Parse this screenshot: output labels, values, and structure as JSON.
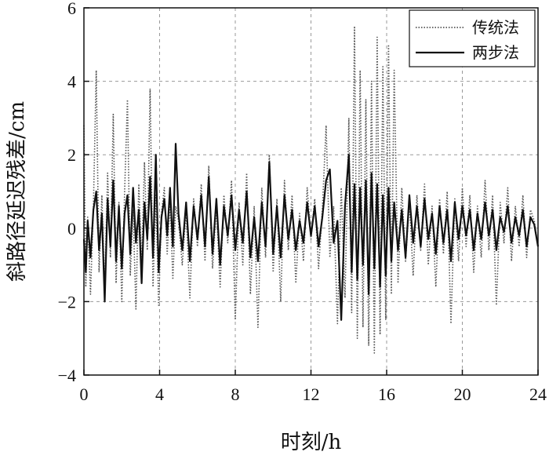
{
  "chart_data": {
    "type": "line",
    "xlabel": "时刻/h",
    "ylabel": "斜路径延迟残差/cm",
    "xlim": [
      0,
      24
    ],
    "ylim": [
      -4,
      6
    ],
    "xticks": [
      0,
      4,
      8,
      12,
      16,
      20,
      24
    ],
    "yticks": [
      -4,
      -2,
      0,
      2,
      4,
      6
    ],
    "grid": true,
    "legend_position": "top-right",
    "series": [
      {
        "name": "传统法",
        "style": "dotted",
        "color": "#555555",
        "x": [
          0.0,
          0.1,
          0.2,
          0.35,
          0.5,
          0.65,
          0.8,
          0.95,
          1.1,
          1.25,
          1.4,
          1.55,
          1.7,
          1.85,
          2.0,
          2.15,
          2.3,
          2.45,
          2.6,
          2.75,
          2.9,
          3.05,
          3.2,
          3.35,
          3.5,
          3.65,
          3.8,
          3.95,
          4.1,
          4.25,
          4.4,
          4.55,
          4.7,
          4.85,
          5.0,
          5.2,
          5.4,
          5.6,
          5.8,
          6.0,
          6.2,
          6.4,
          6.6,
          6.8,
          7.0,
          7.2,
          7.4,
          7.6,
          7.8,
          8.0,
          8.2,
          8.4,
          8.6,
          8.8,
          9.0,
          9.2,
          9.4,
          9.6,
          9.8,
          10.0,
          10.2,
          10.4,
          10.6,
          10.8,
          11.0,
          11.2,
          11.4,
          11.6,
          11.8,
          12.0,
          12.2,
          12.4,
          12.6,
          12.8,
          13.0,
          13.2,
          13.4,
          13.6,
          13.8,
          14.0,
          14.15,
          14.3,
          14.45,
          14.6,
          14.75,
          14.9,
          15.05,
          15.2,
          15.35,
          15.5,
          15.65,
          15.8,
          15.95,
          16.1,
          16.25,
          16.4,
          16.6,
          16.8,
          17.0,
          17.2,
          17.4,
          17.6,
          17.8,
          18.0,
          18.2,
          18.4,
          18.6,
          18.8,
          19.0,
          19.2,
          19.4,
          19.6,
          19.8,
          20.0,
          20.2,
          20.4,
          20.6,
          20.8,
          21.0,
          21.2,
          21.4,
          21.6,
          21.8,
          22.0,
          22.2,
          22.4,
          22.6,
          22.8,
          23.0,
          23.2,
          23.4,
          23.6,
          23.8,
          24.0
        ],
        "y": [
          2.8,
          -1.6,
          0.3,
          -1.8,
          0.6,
          4.3,
          -1.2,
          0.9,
          -1.7,
          1.5,
          -0.8,
          3.1,
          -1.5,
          0.7,
          -2.0,
          1.0,
          3.5,
          -1.3,
          0.5,
          -2.2,
          1.2,
          -1.0,
          1.8,
          -0.6,
          3.8,
          -1.6,
          0.9,
          -2.1,
          0.4,
          1.1,
          -0.7,
          0.8,
          -1.4,
          0.6,
          0.2,
          -1.0,
          0.5,
          -1.9,
          0.8,
          -0.5,
          1.2,
          -0.9,
          1.7,
          -1.1,
          0.6,
          -1.6,
          0.9,
          -0.4,
          1.3,
          -2.5,
          0.7,
          -1.0,
          1.5,
          -1.8,
          0.6,
          -2.7,
          1.1,
          -0.8,
          2.0,
          -1.2,
          0.8,
          -2.0,
          1.3,
          -0.6,
          0.9,
          -1.5,
          0.4,
          -0.9,
          1.1,
          -0.3,
          0.8,
          -1.1,
          0.5,
          2.8,
          -0.8,
          0.6,
          -2.6,
          1.1,
          -1.9,
          3.0,
          -2.3,
          5.5,
          -3.0,
          4.3,
          -2.7,
          3.5,
          -3.2,
          4.0,
          -3.4,
          5.2,
          -2.9,
          4.4,
          -2.5,
          5.0,
          -1.8,
          4.3,
          -1.5,
          1.1,
          -0.9,
          0.7,
          -1.3,
          0.9,
          -0.6,
          1.2,
          -1.0,
          0.6,
          -1.6,
          0.8,
          -0.7,
          1.0,
          -2.6,
          0.8,
          -0.9,
          1.1,
          -0.5,
          0.9,
          -1.2,
          0.6,
          -0.8,
          1.3,
          -0.6,
          0.9,
          -2.1,
          0.7,
          -0.4,
          1.1,
          -0.9,
          0.6,
          -0.5,
          0.9,
          -0.8,
          0.5,
          0.2,
          -0.5
        ]
      },
      {
        "name": "两步法",
        "style": "solid",
        "color": "#111111",
        "x": [
          0.0,
          0.1,
          0.2,
          0.35,
          0.5,
          0.65,
          0.8,
          0.95,
          1.1,
          1.25,
          1.4,
          1.55,
          1.7,
          1.85,
          2.0,
          2.15,
          2.3,
          2.45,
          2.6,
          2.75,
          2.9,
          3.05,
          3.2,
          3.35,
          3.5,
          3.65,
          3.8,
          3.95,
          4.1,
          4.25,
          4.4,
          4.55,
          4.7,
          4.85,
          5.0,
          5.2,
          5.4,
          5.6,
          5.8,
          6.0,
          6.2,
          6.4,
          6.6,
          6.8,
          7.0,
          7.2,
          7.4,
          7.6,
          7.8,
          8.0,
          8.2,
          8.4,
          8.6,
          8.8,
          9.0,
          9.2,
          9.4,
          9.6,
          9.8,
          10.0,
          10.2,
          10.4,
          10.6,
          10.8,
          11.0,
          11.2,
          11.4,
          11.6,
          11.8,
          12.0,
          12.2,
          12.4,
          12.6,
          12.8,
          13.0,
          13.2,
          13.4,
          13.6,
          13.8,
          14.0,
          14.15,
          14.3,
          14.45,
          14.6,
          14.75,
          14.9,
          15.05,
          15.2,
          15.35,
          15.5,
          15.65,
          15.8,
          15.95,
          16.1,
          16.25,
          16.4,
          16.6,
          16.8,
          17.0,
          17.2,
          17.4,
          17.6,
          17.8,
          18.0,
          18.2,
          18.4,
          18.6,
          18.8,
          19.0,
          19.2,
          19.4,
          19.6,
          19.8,
          20.0,
          20.2,
          20.4,
          20.6,
          20.8,
          21.0,
          21.2,
          21.4,
          21.6,
          21.8,
          22.0,
          22.2,
          22.4,
          22.6,
          22.8,
          23.0,
          23.2,
          23.4,
          23.6,
          23.8,
          24.0
        ],
        "y": [
          -0.3,
          -1.2,
          0.2,
          -0.8,
          0.5,
          1.0,
          -0.6,
          0.4,
          -2.0,
          0.8,
          -0.5,
          1.3,
          -0.9,
          0.6,
          -1.1,
          0.4,
          0.9,
          -0.7,
          1.1,
          -0.4,
          0.5,
          -1.5,
          0.7,
          -0.3,
          1.4,
          -0.8,
          2.0,
          -1.2,
          0.3,
          0.8,
          -0.2,
          1.1,
          -0.5,
          2.3,
          0.4,
          -0.6,
          0.7,
          -0.9,
          0.6,
          -0.3,
          0.9,
          -0.5,
          1.4,
          -0.7,
          0.8,
          -1.0,
          0.6,
          -0.2,
          0.9,
          -0.6,
          0.5,
          -0.4,
          1.0,
          -0.8,
          0.3,
          -0.9,
          0.7,
          -0.5,
          1.8,
          -0.7,
          0.6,
          -0.8,
          0.9,
          -0.3,
          0.5,
          -0.6,
          0.2,
          -0.4,
          0.7,
          -0.2,
          0.6,
          -0.5,
          0.3,
          1.3,
          1.6,
          -0.4,
          0.2,
          -2.5,
          0.6,
          2.0,
          -1.2,
          1.2,
          -1.4,
          1.1,
          -1.0,
          1.3,
          -1.8,
          1.5,
          -1.1,
          1.2,
          -1.6,
          0.9,
          -1.3,
          1.1,
          -0.9,
          0.7,
          -0.6,
          0.5,
          -0.8,
          0.9,
          -0.4,
          0.6,
          -0.5,
          0.8,
          -0.3,
          0.4,
          -0.7,
          0.6,
          -0.4,
          0.5,
          -0.9,
          0.7,
          -0.3,
          0.6,
          -0.2,
          0.5,
          -0.6,
          0.4,
          -0.3,
          0.7,
          -0.2,
          0.5,
          -0.6,
          0.3,
          -0.1,
          0.6,
          -0.4,
          0.3,
          -0.2,
          0.5,
          -0.5,
          0.3,
          0.1,
          -0.5
        ]
      }
    ]
  }
}
